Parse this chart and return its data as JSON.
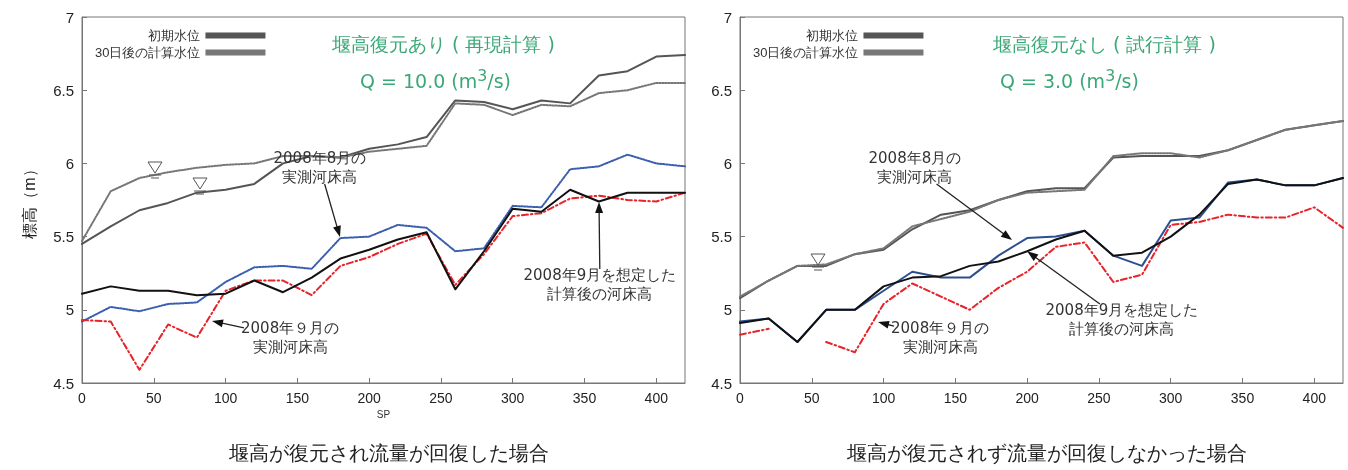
{
  "chart_data": [
    {
      "type": "line",
      "title": "堰高が復元され流量が回復した場合",
      "xlabel": "SP",
      "ylabel": "標高（m）",
      "x": [
        0,
        20,
        40,
        60,
        80,
        100,
        120,
        140,
        160,
        180,
        200,
        220,
        240,
        260,
        280,
        300,
        320,
        340,
        360,
        380,
        400,
        420
      ],
      "xlim": [
        0,
        420
      ],
      "xticks": [
        0,
        50,
        100,
        150,
        200,
        250,
        300,
        350,
        400
      ],
      "ylim": [
        4.5,
        7
      ],
      "yticks": [
        4.5,
        5,
        5.5,
        6,
        6.5,
        7
      ],
      "grid": false,
      "legend": "top left",
      "marker": "none",
      "series": [
        {
          "name": "初期水位",
          "color": "#555555",
          "line_style": "solid",
          "values": [
            5.45,
            5.57,
            5.68,
            5.73,
            5.8,
            5.82,
            5.86,
            6.0,
            6.05,
            6.04,
            6.1,
            6.13,
            6.18,
            6.43,
            6.42,
            6.37,
            6.43,
            6.41,
            6.6,
            6.63,
            6.73,
            6.74
          ]
        },
        {
          "name": "30日後の計算水位",
          "color": "#777777",
          "line_style": "dotted",
          "values": [
            5.47,
            5.81,
            5.9,
            5.94,
            5.97,
            5.99,
            6.0,
            6.05,
            6.05,
            6.04,
            6.08,
            6.1,
            6.12,
            6.41,
            6.4,
            6.33,
            6.4,
            6.39,
            6.48,
            6.5,
            6.55,
            6.55
          ]
        },
        {
          "color": "#3a5fb0",
          "line_style": "dotted",
          "values": [
            4.92,
            5.02,
            4.99,
            5.04,
            5.05,
            5.19,
            5.29,
            5.3,
            5.28,
            5.49,
            5.5,
            5.58,
            5.56,
            5.4,
            5.42,
            5.71,
            5.7,
            5.96,
            5.98,
            6.06,
            6.0,
            5.98
          ]
        },
        {
          "color": "#e8232a",
          "line_style": "dashed",
          "values": [
            4.93,
            4.92,
            4.59,
            4.9,
            4.81,
            5.13,
            5.2,
            5.2,
            5.1,
            5.3,
            5.36,
            5.45,
            5.52,
            5.17,
            5.38,
            5.64,
            5.66,
            5.76,
            5.78,
            5.75,
            5.74,
            5.8
          ]
        },
        {
          "color": "#111111",
          "line_style": "solid",
          "values": [
            5.11,
            5.16,
            5.13,
            5.13,
            5.1,
            5.11,
            5.2,
            5.12,
            5.22,
            5.35,
            5.41,
            5.48,
            5.53,
            5.14,
            5.4,
            5.69,
            5.67,
            5.82,
            5.74,
            5.8,
            5.8,
            5.8
          ]
        }
      ],
      "annotations": [
        "堰高復元あり ( 再現計算 )",
        "Q = 10.0 (m$^{3}$/s)",
        "2008年8月の実測河床高",
        "2008年９月の実測河床高",
        "2008年9月を想定した計算後の河床高"
      ]
    },
    {
      "type": "line",
      "title": "堰高が復元されず流量が回復しなかった場合",
      "x": [
        0,
        20,
        40,
        60,
        80,
        100,
        120,
        140,
        160,
        180,
        200,
        220,
        240,
        260,
        280,
        300,
        320,
        340,
        360,
        380,
        400,
        420
      ],
      "xlim": [
        0,
        420
      ],
      "xticks": [
        0,
        50,
        100,
        150,
        200,
        250,
        300,
        350,
        400
      ],
      "ylim": [
        4.5,
        7
      ],
      "yticks": [
        4.5,
        5,
        5.5,
        6,
        6.5,
        7
      ],
      "grid": false,
      "legend": "top left",
      "marker": "none",
      "series": [
        {
          "name": "初期水位",
          "color": "#555555",
          "line_style": "solid",
          "values": [
            5.08,
            5.2,
            5.3,
            5.3,
            5.38,
            5.41,
            5.55,
            5.65,
            5.68,
            5.75,
            5.81,
            5.83,
            5.83,
            6.04,
            6.05,
            6.05,
            6.05,
            6.09,
            6.16,
            6.23,
            6.26,
            6.29
          ]
        },
        {
          "name": "30日後の計算水位",
          "color": "#777777",
          "line_style": "dotted",
          "values": [
            5.09,
            5.2,
            5.3,
            5.31,
            5.38,
            5.42,
            5.57,
            5.62,
            5.67,
            5.75,
            5.8,
            5.81,
            5.82,
            6.05,
            6.07,
            6.07,
            6.04,
            6.09,
            6.16,
            6.23,
            6.26,
            6.29
          ]
        },
        {
          "color": "#2c4f8f",
          "line_style": "solid",
          "values": [
            4.92,
            4.94,
            4.78,
            5.0,
            5.0,
            5.13,
            5.26,
            5.22,
            5.22,
            5.37,
            5.49,
            5.5,
            5.54,
            5.37,
            5.3,
            5.61,
            5.63,
            5.87,
            5.89,
            5.85,
            5.85,
            5.9
          ]
        },
        {
          "color": "#e8232a",
          "line_style": "dashed",
          "values": [
            4.83,
            4.87,
            null,
            4.78,
            4.71,
            5.04,
            5.18,
            5.09,
            5.0,
            5.15,
            5.26,
            5.43,
            5.46,
            5.19,
            5.24,
            5.58,
            5.6,
            5.65,
            5.63,
            5.63,
            5.7,
            5.56
          ]
        },
        {
          "color": "#111111",
          "line_style": "solid",
          "values": [
            4.91,
            4.94,
            4.78,
            5.0,
            5.0,
            5.16,
            5.22,
            5.23,
            5.3,
            5.33,
            5.4,
            5.48,
            5.54,
            5.37,
            5.39,
            5.5,
            5.65,
            5.86,
            5.89,
            5.85,
            5.85,
            5.9
          ]
        }
      ],
      "annotations": [
        "堰高復元なし ( 試行計算 )",
        "Q = 3.0 (m$^{3}$/s)",
        "2008年8月の実測河床高",
        "2008年９月の実測河床高",
        {
          "text": "2008年9月を想定した計算後の河床高",
          "x": 200,
          "y": 5.4
        }
      ]
    }
  ]
}
